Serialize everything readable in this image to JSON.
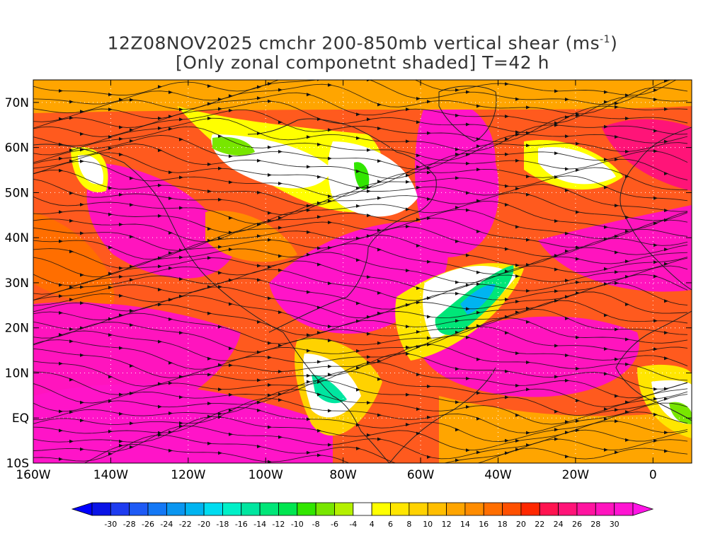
{
  "title": {
    "line1_prefix": "12Z08NOV2025 cmchr 200-850mb vertical shear (ms",
    "line1_sup": "-1",
    "line1_suffix": ")",
    "line2": "[Only zonal componetnt shaded] T=42 h"
  },
  "map": {
    "lon_range": [
      -160,
      10
    ],
    "lat_range": [
      -10,
      75
    ],
    "lon_ticks": [
      {
        "value": -160,
        "label": "160W"
      },
      {
        "value": -140,
        "label": "140W"
      },
      {
        "value": -120,
        "label": "120W"
      },
      {
        "value": -100,
        "label": "100W"
      },
      {
        "value": -80,
        "label": "80W"
      },
      {
        "value": -60,
        "label": "60W"
      },
      {
        "value": -40,
        "label": "40W"
      },
      {
        "value": -20,
        "label": "20W"
      },
      {
        "value": 0,
        "label": "0"
      }
    ],
    "lat_ticks": [
      {
        "value": -10,
        "label": "10S"
      },
      {
        "value": 0,
        "label": "EQ"
      },
      {
        "value": 10,
        "label": "10N"
      },
      {
        "value": 20,
        "label": "20N"
      },
      {
        "value": 30,
        "label": "30N"
      },
      {
        "value": 40,
        "label": "40N"
      },
      {
        "value": 50,
        "label": "50N"
      },
      {
        "value": 60,
        "label": "60N"
      },
      {
        "value": 70,
        "label": "70N"
      }
    ]
  },
  "colorbar": {
    "labels": [
      "-30",
      "-28",
      "-26",
      "-24",
      "-22",
      "-20",
      "-18",
      "-16",
      "-14",
      "-12",
      "-10",
      "-8",
      "-6",
      "-4",
      "4",
      "6",
      "8",
      "10",
      "12",
      "14",
      "16",
      "18",
      "20",
      "22",
      "24",
      "26",
      "28",
      "30"
    ],
    "colors": [
      "#0a14e6",
      "#1e3cf0",
      "#1e5af5",
      "#1478f5",
      "#0a96f0",
      "#00b4f0",
      "#00dcf0",
      "#00f0c8",
      "#00e6a0",
      "#00e678",
      "#00e650",
      "#32e600",
      "#78e600",
      "#b4f000",
      "#ffffff",
      "#ffff00",
      "#ffe600",
      "#ffd200",
      "#ffbe00",
      "#ffa500",
      "#ff8c00",
      "#ff6e00",
      "#ff5000",
      "#ff2800",
      "#ff1450",
      "#ff1478",
      "#ff14a0",
      "#ff14be",
      "#ff14d2"
    ],
    "under_color": "#0000ff",
    "over_color": "#ff14e6"
  }
}
